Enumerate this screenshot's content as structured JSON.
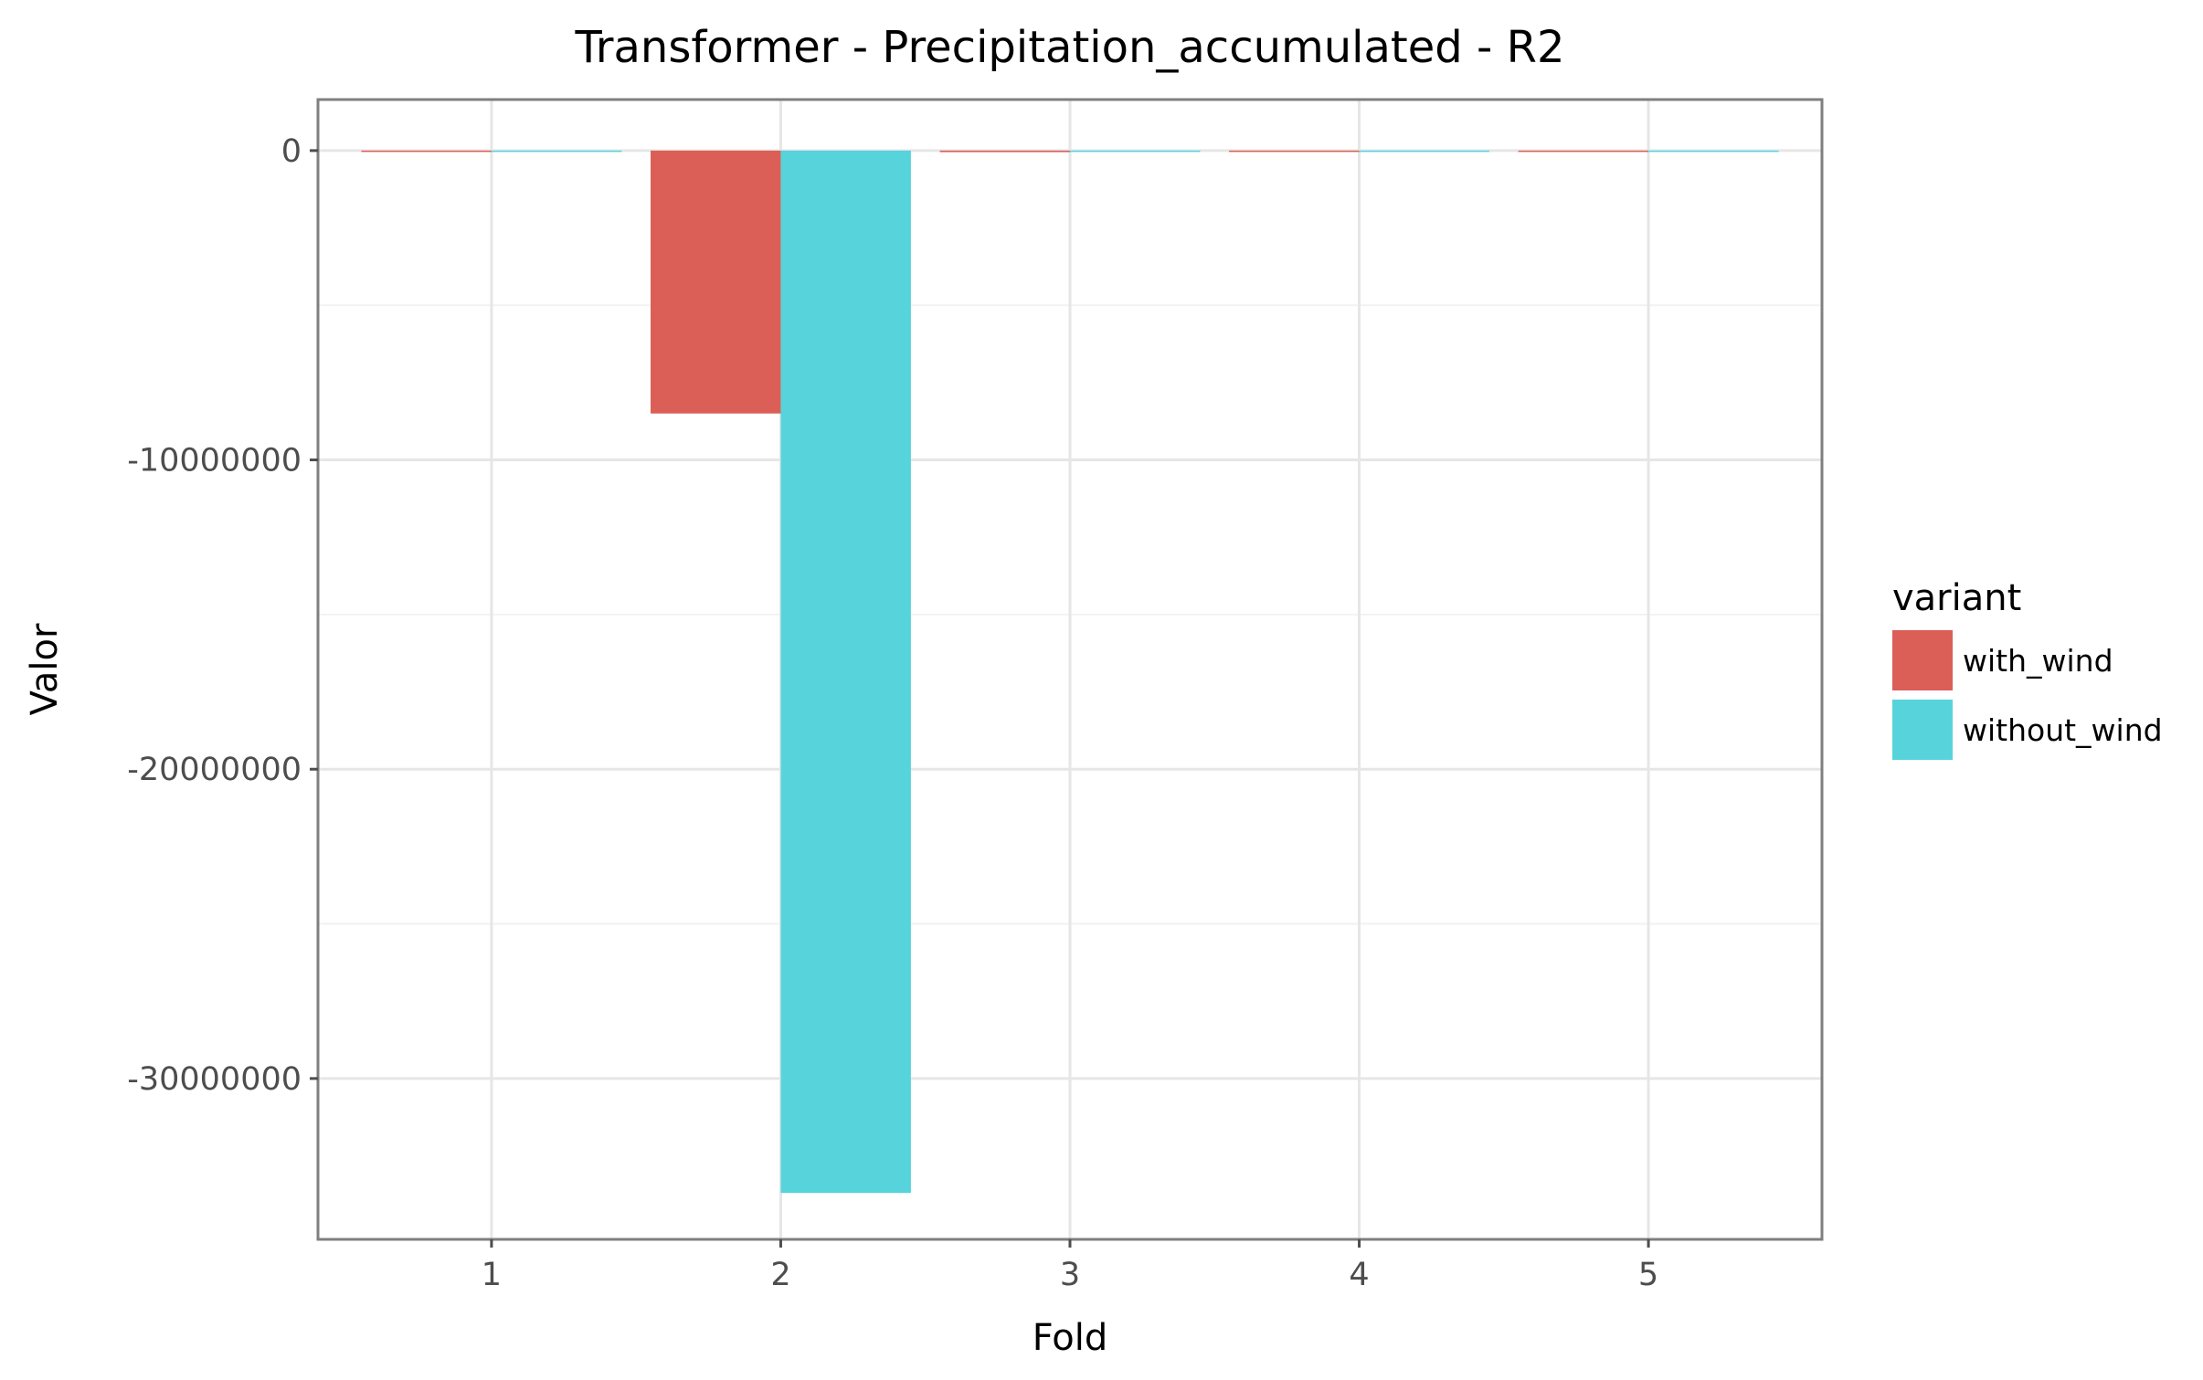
{
  "chart_data": {
    "type": "bar",
    "title": "Transformer - Precipitation_accumulated - R2",
    "xlabel": "Fold",
    "ylabel": "Valor",
    "categories": [
      "1",
      "2",
      "3",
      "4",
      "5"
    ],
    "series": [
      {
        "name": "with_wind",
        "color": "#db5f57",
        "values": [
          0,
          -8500000,
          -50000,
          -30000,
          -40000
        ]
      },
      {
        "name": "without_wind",
        "color": "#57d3db",
        "values": [
          0,
          -33700000,
          -10000,
          0,
          0
        ]
      }
    ],
    "ylim": [
      -35200000,
      1650000
    ],
    "yticks": [
      0,
      -10000000,
      -20000000,
      -30000000
    ],
    "ytick_labels": [
      "0",
      "-10000000",
      "-20000000",
      "-30000000"
    ],
    "legend": {
      "title": "variant",
      "position": "right"
    },
    "grid": true
  }
}
